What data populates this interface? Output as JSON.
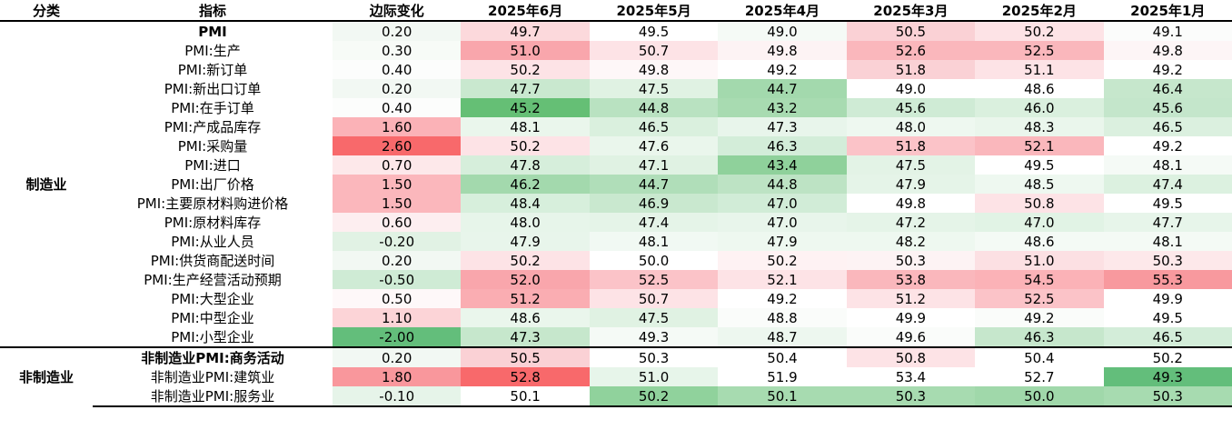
{
  "headers": [
    "分类",
    "指标",
    "边际变化",
    "2025年6月",
    "2025年5月",
    "2025年4月",
    "2025年3月",
    "2025年2月",
    "2025年1月"
  ],
  "groups": [
    {
      "category": "制造业",
      "rows": [
        {
          "name": "PMI",
          "bold": true,
          "change": "0.20",
          "values": [
            "49.7",
            "49.5",
            "49.0",
            "50.5",
            "50.2",
            "49.1"
          ],
          "change_bg": "#f2f8f3",
          "bg": [
            "#fcd9dc",
            "#ffffff",
            "#f5faf6",
            "#fad1d5",
            "#fde3e6",
            "#fbfcfb"
          ]
        },
        {
          "name": "PMI:生产",
          "change": "0.30",
          "values": [
            "51.0",
            "50.7",
            "49.8",
            "52.6",
            "52.5",
            "49.8"
          ],
          "change_bg": "#f7fbf7",
          "bg": [
            "#f9a6ac",
            "#fde3e6",
            "#fdf3f4",
            "#fab7bc",
            "#fab7bc",
            "#fdf5f6"
          ]
        },
        {
          "name": "PMI:新订单",
          "change": "0.40",
          "values": [
            "50.2",
            "49.8",
            "49.2",
            "51.8",
            "51.1",
            "49.2"
          ],
          "change_bg": "#fcfdfc",
          "bg": [
            "#fde3e6",
            "#fef7f8",
            "#ffffff",
            "#fad1d5",
            "#fde3e6",
            "#ffffff"
          ]
        },
        {
          "name": "PMI:新出口订单",
          "change": "0.20",
          "values": [
            "47.7",
            "47.5",
            "44.7",
            "49.0",
            "48.6",
            "46.4"
          ],
          "change_bg": "#f2f8f3",
          "bg": [
            "#c9e8cf",
            "#e0f2e3",
            "#a3d9ad",
            "#ffffff",
            "#ffffff",
            "#c6e7cc"
          ]
        },
        {
          "name": "PMI:在手订单",
          "change": "0.40",
          "values": [
            "45.2",
            "44.8",
            "43.2",
            "45.6",
            "46.0",
            "45.6"
          ],
          "change_bg": "#fcfdfc",
          "bg": [
            "#65bf75",
            "#b9e2c1",
            "#a8dbb1",
            "#cfebd5",
            "#daf0de",
            "#c4e6cb"
          ]
        },
        {
          "name": "PMI:产成品库存",
          "change": "1.60",
          "values": [
            "48.1",
            "46.5",
            "47.3",
            "48.0",
            "48.3",
            "46.5"
          ],
          "change_bg": "#fbb2b7",
          "bg": [
            "#eaf6ec",
            "#daf0de",
            "#e8f5eb",
            "#eef8f0",
            "#eaf6ec",
            "#dbf0df"
          ]
        },
        {
          "name": "PMI:采购量",
          "change": "2.60",
          "values": [
            "50.2",
            "47.6",
            "46.3",
            "51.8",
            "52.1",
            "49.2"
          ],
          "change_bg": "#f8696b",
          "bg": [
            "#fde3e6",
            "#eaf6ec",
            "#d3edd9",
            "#fbc3c8",
            "#fab7bc",
            "#ffffff"
          ]
        },
        {
          "name": "PMI:进口",
          "change": "0.70",
          "values": [
            "47.8",
            "47.1",
            "43.4",
            "47.5",
            "49.5",
            "48.1"
          ],
          "change_bg": "#fde8ea",
          "bg": [
            "#d6eedb",
            "#e0f2e3",
            "#8fd19b",
            "#e3f3e6",
            "#ffffff",
            "#f5faf6"
          ]
        },
        {
          "name": "PMI:出厂价格",
          "change": "1.50",
          "values": [
            "46.2",
            "44.7",
            "44.8",
            "47.9",
            "48.5",
            "47.4"
          ],
          "change_bg": "#fbb7bc",
          "bg": [
            "#a3d9ad",
            "#b0deb9",
            "#bde3c4",
            "#e5f4e8",
            "#eef8f0",
            "#dcf1e0"
          ]
        },
        {
          "name": "PMI:主要原材料购进价格",
          "change": "1.50",
          "values": [
            "48.4",
            "46.9",
            "47.0",
            "49.8",
            "50.8",
            "49.5"
          ],
          "change_bg": "#fbb7bc",
          "bg": [
            "#d7efdc",
            "#c9e8cf",
            "#d1ecd7",
            "#ffffff",
            "#fde3e6",
            "#ffffff"
          ]
        },
        {
          "name": "PMI:原材料库存",
          "change": "0.60",
          "values": [
            "48.0",
            "47.4",
            "47.0",
            "47.2",
            "47.0",
            "47.7"
          ],
          "change_bg": "#fdeef0",
          "bg": [
            "#e7f5ea",
            "#e5f4e8",
            "#e8f5eb",
            "#e5f4e8",
            "#e1f3e5",
            "#e7f5ea"
          ]
        },
        {
          "name": "PMI:从业人员",
          "change": "-0.20",
          "values": [
            "47.9",
            "48.1",
            "47.9",
            "48.2",
            "48.6",
            "48.1"
          ],
          "change_bg": "#e1f2e4",
          "bg": [
            "#e8f5eb",
            "#f1f9f3",
            "#eef8f0",
            "#eef8f0",
            "#f4faf5",
            "#f4faf5"
          ]
        },
        {
          "name": "PMI:供货商配送时间",
          "change": "0.20",
          "values": [
            "50.2",
            "50.0",
            "50.2",
            "50.3",
            "51.0",
            "50.3"
          ],
          "change_bg": "#f2f8f3",
          "bg": [
            "#fde3e6",
            "#ffffff",
            "#fef2f3",
            "#fdf3f4",
            "#fce0e3",
            "#fde8ea"
          ]
        },
        {
          "name": "PMI:生产经营活动预期",
          "change": "-0.50",
          "values": [
            "52.0",
            "52.5",
            "52.1",
            "53.8",
            "54.5",
            "55.3"
          ],
          "change_bg": "#cfebd5",
          "bg": [
            "#f9a6ac",
            "#fbc3c8",
            "#fde3e6",
            "#fab7bc",
            "#fbb2b7",
            "#f8999e"
          ]
        },
        {
          "name": "PMI:大型企业",
          "change": "0.50",
          "values": [
            "51.2",
            "50.7",
            "49.2",
            "51.2",
            "52.5",
            "49.9"
          ],
          "change_bg": "#fef8f9",
          "bg": [
            "#faadb2",
            "#fde3e6",
            "#ffffff",
            "#fde3e6",
            "#fbc3c8",
            "#ffffff"
          ]
        },
        {
          "name": "PMI:中型企业",
          "change": "1.10",
          "values": [
            "48.6",
            "47.5",
            "48.8",
            "49.9",
            "49.2",
            "49.5"
          ],
          "change_bg": "#fcd4d7",
          "bg": [
            "#eaf6ec",
            "#e0f2e3",
            "#fafcfa",
            "#ffffff",
            "#fafcfa",
            "#ffffff"
          ]
        },
        {
          "name": "PMI:小型企业",
          "change": "-2.00",
          "values": [
            "47.3",
            "49.3",
            "48.7",
            "49.6",
            "46.3",
            "46.5"
          ],
          "change_bg": "#63be7b",
          "bg": [
            "#c6e7cc",
            "#f5faf6",
            "#edf7ef",
            "#fafcfa",
            "#c6e7cc",
            "#d3edd9"
          ]
        }
      ]
    },
    {
      "category": "非制造业",
      "rows": [
        {
          "name": "非制造业PMI:商务活动",
          "bold": true,
          "change": "0.20",
          "values": [
            "50.5",
            "50.3",
            "50.4",
            "50.8",
            "50.4",
            "50.2"
          ],
          "change_bg": "#f2f8f3",
          "bg": [
            "#fad1d5",
            "#ffffff",
            "#ffffff",
            "#fde3e6",
            "#ffffff",
            "#ffffff"
          ]
        },
        {
          "name": "非制造业PMI:建筑业",
          "change": "1.80",
          "values": [
            "52.8",
            "51.0",
            "51.9",
            "53.4",
            "52.7",
            "49.3"
          ],
          "change_bg": "#f9979c",
          "bg": [
            "#f8696b",
            "#e7f5ea",
            "#ffffff",
            "#ffffff",
            "#ffffff",
            "#63be7b"
          ]
        },
        {
          "name": "非制造业PMI:服务业",
          "change": "-0.10",
          "values": [
            "50.1",
            "50.2",
            "50.1",
            "50.3",
            "50.0",
            "50.3"
          ],
          "change_bg": "#e6f4e9",
          "bg": [
            "#ffffff",
            "#90d29c",
            "#a7dbb0",
            "#a7dbb0",
            "#a0d8aa",
            "#a7dbb0"
          ]
        }
      ]
    }
  ]
}
